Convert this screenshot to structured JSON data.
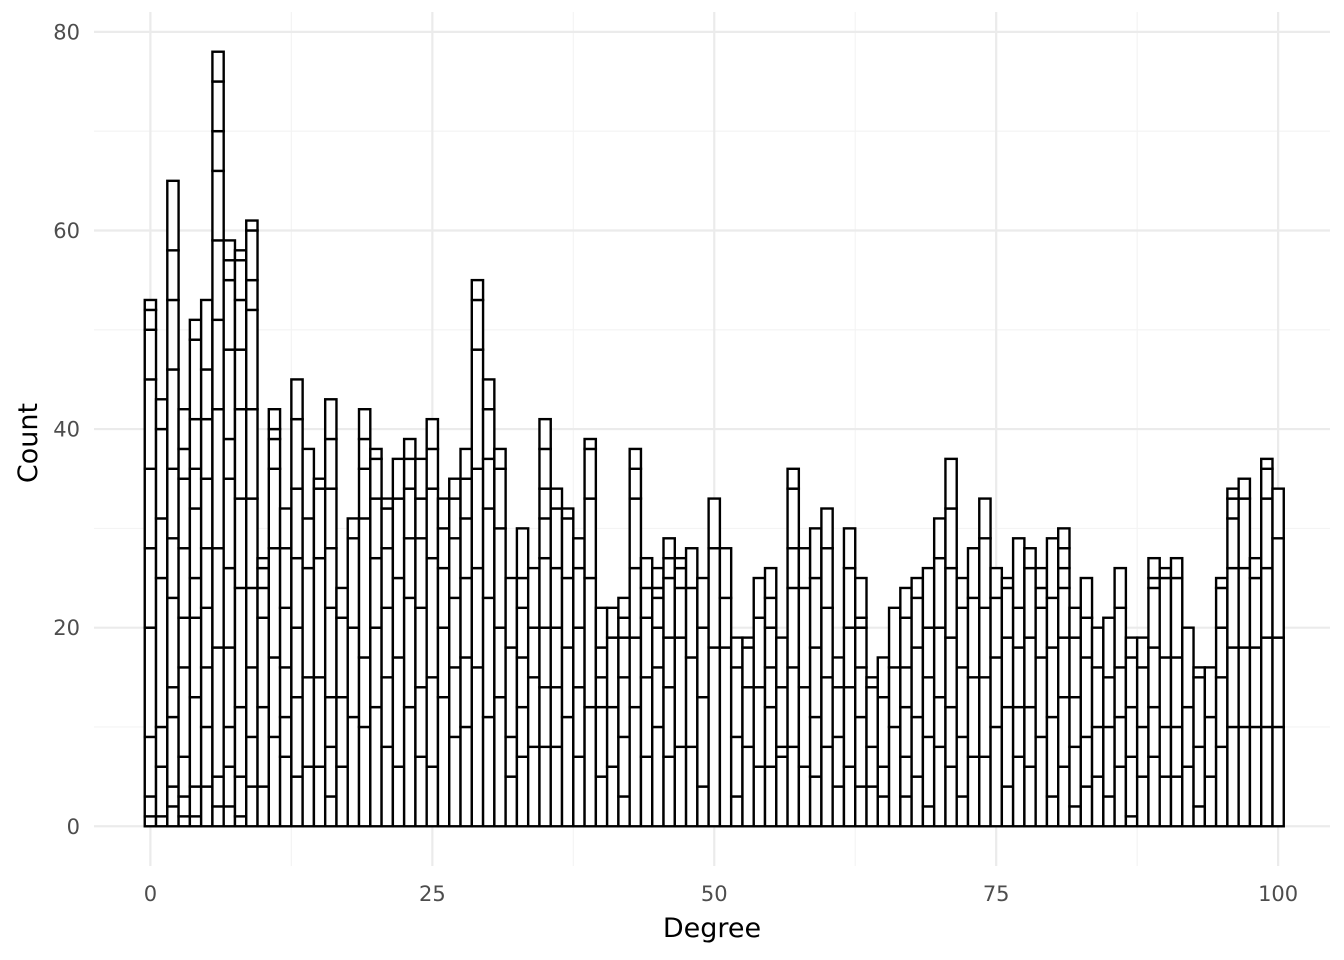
{
  "chart_data": {
    "type": "bar",
    "subtype": "stacked histogram",
    "title": "",
    "xlabel": "Degree",
    "ylabel": "Count",
    "xlim": [
      -5,
      104.6
    ],
    "ylim": [
      -4,
      82
    ],
    "x_ticks": [
      0,
      25,
      50,
      75,
      100
    ],
    "x_tick_labels": [
      "0",
      "25",
      "50",
      "75",
      "100"
    ],
    "y_ticks": [
      0,
      20,
      40,
      60,
      80
    ],
    "y_tick_labels": [
      "0",
      "20",
      "40",
      "60",
      "80"
    ],
    "grid": true,
    "legend": "none",
    "bar_fill": "#ffffff",
    "bar_outline": "#000000",
    "bins_start": 0,
    "bin_width": 1,
    "stacks": [
      [
        1,
        3,
        9,
        20,
        28,
        36,
        45,
        50,
        52,
        53
      ],
      [
        1,
        6,
        10,
        25,
        31,
        40,
        43
      ],
      [
        2,
        4,
        11,
        14,
        23,
        29,
        36,
        46,
        53,
        58,
        65
      ],
      [
        1,
        3,
        7,
        16,
        21,
        28,
        35,
        38,
        42
      ],
      [
        1,
        4,
        13,
        21,
        25,
        32,
        36,
        41,
        49,
        51
      ],
      [
        4,
        10,
        16,
        22,
        28,
        35,
        41,
        46,
        53
      ],
      [
        2,
        5,
        18,
        28,
        42,
        51,
        59,
        66,
        70,
        75,
        78
      ],
      [
        2,
        6,
        10,
        18,
        26,
        35,
        39,
        48,
        55,
        57,
        59
      ],
      [
        1,
        5,
        12,
        24,
        33,
        42,
        48,
        53,
        57,
        58
      ],
      [
        4,
        9,
        16,
        24,
        33,
        42,
        52,
        55,
        60,
        61
      ],
      [
        4,
        12,
        21,
        24,
        26,
        27
      ],
      [
        9,
        17,
        28,
        36,
        39,
        40,
        42
      ],
      [
        7,
        11,
        16,
        22,
        28,
        32
      ],
      [
        5,
        13,
        20,
        27,
        34,
        41,
        45
      ],
      [
        6,
        15,
        26,
        31,
        38
      ],
      [
        6,
        15,
        27,
        34,
        35
      ],
      [
        3,
        8,
        13,
        22,
        28,
        34,
        39,
        43
      ],
      [
        6,
        13,
        21,
        24
      ],
      [
        11,
        20,
        29,
        31
      ],
      [
        10,
        17,
        31,
        36,
        39,
        42
      ],
      [
        12,
        20,
        27,
        33,
        37,
        38
      ],
      [
        8,
        15,
        22,
        28,
        32,
        33
      ],
      [
        6,
        17,
        25,
        33,
        37
      ],
      [
        12,
        23,
        29,
        34,
        37,
        39
      ],
      [
        7,
        14,
        22,
        29,
        33,
        37
      ],
      [
        6,
        15,
        27,
        34,
        38,
        41
      ],
      [
        13,
        20,
        26,
        30,
        33
      ],
      [
        9,
        16,
        23,
        29,
        33,
        35
      ],
      [
        10,
        17,
        25,
        31,
        35,
        38
      ],
      [
        16,
        26,
        36,
        48,
        53,
        55
      ],
      [
        11,
        23,
        32,
        37,
        42,
        45
      ],
      [
        13,
        20,
        30,
        36,
        38
      ],
      [
        5,
        9,
        18,
        25
      ],
      [
        7,
        12,
        17,
        22,
        25,
        30
      ],
      [
        8,
        15,
        20,
        26
      ],
      [
        8,
        14,
        20,
        27,
        31,
        34,
        38,
        41
      ],
      [
        8,
        14,
        20,
        26,
        32,
        34
      ],
      [
        11,
        18,
        25,
        31,
        32
      ],
      [
        7,
        14,
        20,
        26,
        29
      ],
      [
        12,
        25,
        33,
        38,
        39
      ],
      [
        5,
        12,
        15,
        18,
        22
      ],
      [
        6,
        12,
        19,
        22
      ],
      [
        3,
        9,
        15,
        19,
        21,
        23
      ],
      [
        12,
        19,
        26,
        33,
        36,
        38
      ],
      [
        7,
        15,
        21,
        24,
        27
      ],
      [
        10,
        16,
        20,
        23,
        24,
        26
      ],
      [
        7,
        14,
        19,
        25,
        27,
        29
      ],
      [
        8,
        19,
        24,
        26,
        27
      ],
      [
        8,
        17,
        24,
        28
      ],
      [
        4,
        13,
        20,
        25
      ],
      [
        18,
        28,
        33
      ],
      [
        18,
        23,
        28
      ],
      [
        3,
        9,
        16,
        19
      ],
      [
        8,
        14,
        18,
        19
      ],
      [
        6,
        14,
        21,
        25
      ],
      [
        6,
        12,
        16,
        20,
        23,
        26
      ],
      [
        7,
        8,
        14,
        19
      ],
      [
        8,
        16,
        24,
        28,
        34,
        36
      ],
      [
        6,
        14,
        24,
        28
      ],
      [
        5,
        11,
        18,
        25,
        30
      ],
      [
        8,
        15,
        22,
        28,
        32
      ],
      [
        4,
        9,
        14,
        17
      ],
      [
        6,
        14,
        20,
        26,
        30
      ],
      [
        4,
        11,
        16,
        20,
        21,
        25
      ],
      [
        4,
        8,
        14,
        15
      ],
      [
        3,
        6,
        13,
        17
      ],
      [
        10,
        16,
        22
      ],
      [
        3,
        7,
        12,
        16,
        21,
        24
      ],
      [
        5,
        11,
        18,
        23,
        25
      ],
      [
        2,
        9,
        15,
        20,
        26
      ],
      [
        8,
        13,
        20,
        27,
        31
      ],
      [
        6,
        12,
        19,
        26,
        32,
        37
      ],
      [
        3,
        9,
        16,
        22,
        25
      ],
      [
        7,
        15,
        23,
        28
      ],
      [
        7,
        15,
        22,
        29,
        33
      ],
      [
        10,
        17,
        23,
        26
      ],
      [
        4,
        12,
        19,
        24,
        25
      ],
      [
        7,
        12,
        18,
        22,
        29
      ],
      [
        6,
        12,
        19,
        26,
        28
      ],
      [
        9,
        17,
        22,
        24,
        26
      ],
      [
        3,
        11,
        18,
        23,
        29
      ],
      [
        6,
        13,
        19,
        24,
        26,
        28,
        30
      ],
      [
        2,
        8,
        13,
        19,
        22
      ],
      [
        4,
        9,
        17,
        21,
        25
      ],
      [
        5,
        10,
        16,
        20
      ],
      [
        3,
        10,
        15,
        21
      ],
      [
        6,
        11,
        16,
        22,
        26
      ],
      [
        1,
        7,
        12,
        17,
        19
      ],
      [
        5,
        10,
        16,
        19
      ],
      [
        7,
        12,
        18,
        24,
        25,
        27
      ],
      [
        5,
        10,
        17,
        25,
        26
      ],
      [
        5,
        10,
        17,
        25,
        27
      ],
      [
        6,
        12,
        20
      ],
      [
        2,
        8,
        15,
        16
      ],
      [
        5,
        11,
        16
      ],
      [
        8,
        15,
        20,
        24,
        25
      ],
      [
        10,
        18,
        26,
        31,
        33,
        34
      ],
      [
        10,
        18,
        26,
        33,
        35
      ],
      [
        10,
        18,
        25,
        27
      ],
      [
        10,
        19,
        26,
        33,
        36,
        37
      ],
      [
        10,
        19,
        29,
        34
      ]
    ]
  }
}
